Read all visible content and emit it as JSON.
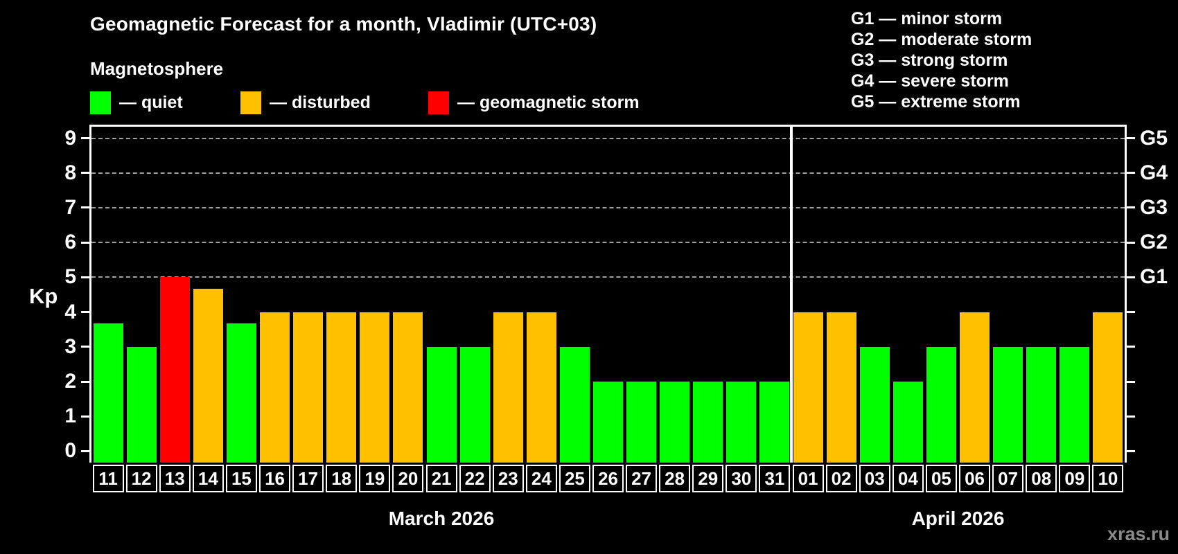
{
  "header": {
    "title": "Geomagnetic Forecast for a month, Vladimir (UTC+03)"
  },
  "magnetosphere_legend": {
    "title": "Magnetosphere",
    "items": [
      {
        "label": "— quiet",
        "status": "quiet",
        "color": "#00ff00"
      },
      {
        "label": "— disturbed",
        "status": "disturbed",
        "color": "#ffc000"
      },
      {
        "label": "— geomagnetic storm",
        "status": "storm",
        "color": "#ff0000"
      }
    ]
  },
  "storm_scale_legend": {
    "items": [
      "G1 — minor storm",
      "G2 — moderate storm",
      "G3 — strong storm",
      "G4 — severe storm",
      "G5 — extreme storm"
    ]
  },
  "watermark": "xras.ru",
  "chart_data": {
    "type": "bar",
    "title": "Geomagnetic Forecast for a month, Vladimir (UTC+03)",
    "ylabel": "Kp",
    "ylim": [
      0,
      9
    ],
    "y_ticks": [
      0,
      1,
      2,
      3,
      4,
      5,
      6,
      7,
      8,
      9
    ],
    "grid": "horizontal dashed lines at Kp 5 through 9",
    "gridlines_at_kp": [
      5,
      6,
      7,
      8,
      9
    ],
    "legend_position": "top",
    "right_axis": [
      {
        "label": "G1",
        "kp": 5
      },
      {
        "label": "G2",
        "kp": 6
      },
      {
        "label": "G3",
        "kp": 7
      },
      {
        "label": "G4",
        "kp": 8
      },
      {
        "label": "G5",
        "kp": 9
      }
    ],
    "status_colors": {
      "quiet": "#00ff00",
      "disturbed": "#ffc000",
      "storm": "#ff0000"
    },
    "months": [
      {
        "label": "March 2026",
        "days": [
          {
            "day": "11",
            "kp": 3.67,
            "status": "quiet"
          },
          {
            "day": "12",
            "kp": 3,
            "status": "quiet"
          },
          {
            "day": "13",
            "kp": 5,
            "status": "storm"
          },
          {
            "day": "14",
            "kp": 4.67,
            "status": "disturbed"
          },
          {
            "day": "15",
            "kp": 3.67,
            "status": "quiet"
          },
          {
            "day": "16",
            "kp": 4,
            "status": "disturbed"
          },
          {
            "day": "17",
            "kp": 4,
            "status": "disturbed"
          },
          {
            "day": "18",
            "kp": 4,
            "status": "disturbed"
          },
          {
            "day": "19",
            "kp": 4,
            "status": "disturbed"
          },
          {
            "day": "20",
            "kp": 4,
            "status": "disturbed"
          },
          {
            "day": "21",
            "kp": 3,
            "status": "quiet"
          },
          {
            "day": "22",
            "kp": 3,
            "status": "quiet"
          },
          {
            "day": "23",
            "kp": 4,
            "status": "disturbed"
          },
          {
            "day": "24",
            "kp": 4,
            "status": "disturbed"
          },
          {
            "day": "25",
            "kp": 3,
            "status": "quiet"
          },
          {
            "day": "26",
            "kp": 2,
            "status": "quiet"
          },
          {
            "day": "27",
            "kp": 2,
            "status": "quiet"
          },
          {
            "day": "28",
            "kp": 2,
            "status": "quiet"
          },
          {
            "day": "29",
            "kp": 2,
            "status": "quiet"
          },
          {
            "day": "30",
            "kp": 2,
            "status": "quiet"
          },
          {
            "day": "31",
            "kp": 2,
            "status": "quiet"
          }
        ]
      },
      {
        "label": "April 2026",
        "days": [
          {
            "day": "01",
            "kp": 4,
            "status": "disturbed"
          },
          {
            "day": "02",
            "kp": 4,
            "status": "disturbed"
          },
          {
            "day": "03",
            "kp": 3,
            "status": "quiet"
          },
          {
            "day": "04",
            "kp": 2,
            "status": "quiet"
          },
          {
            "day": "05",
            "kp": 3,
            "status": "quiet"
          },
          {
            "day": "06",
            "kp": 4,
            "status": "disturbed"
          },
          {
            "day": "07",
            "kp": 3,
            "status": "quiet"
          },
          {
            "day": "08",
            "kp": 3,
            "status": "quiet"
          },
          {
            "day": "09",
            "kp": 3,
            "status": "quiet"
          },
          {
            "day": "10",
            "kp": 4,
            "status": "disturbed"
          }
        ]
      }
    ]
  }
}
